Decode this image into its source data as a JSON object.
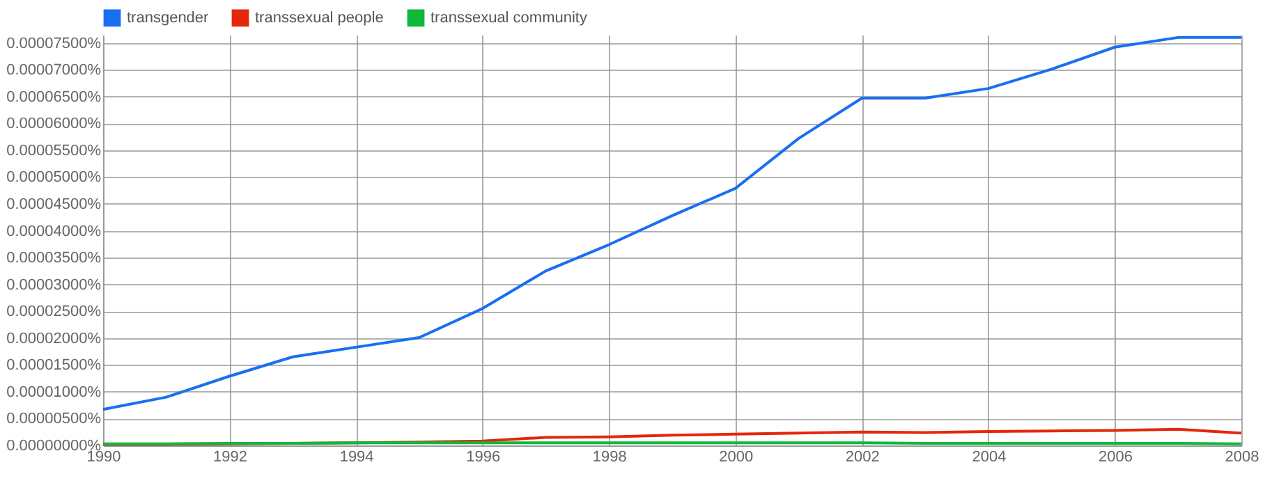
{
  "chart_data": {
    "type": "line",
    "x": [
      1990,
      1991,
      1992,
      1993,
      1994,
      1995,
      1996,
      1997,
      1998,
      1999,
      2000,
      2001,
      2002,
      2003,
      2004,
      2005,
      2006,
      2007,
      2008
    ],
    "series": [
      {
        "name": "transgender",
        "color": "#1a6ff0",
        "values": [
          6.7e-06,
          9e-06,
          1.29e-05,
          1.65e-05,
          1.83e-05,
          2.01e-05,
          2.55e-05,
          3.25e-05,
          3.74e-05,
          4.28e-05,
          4.79e-05,
          5.72e-05,
          6.47e-05,
          6.47e-05,
          6.65e-05,
          7.01e-05,
          7.42e-05,
          7.6e-05,
          7.6e-05
        ]
      },
      {
        "name": "transsexual people",
        "color": "#e4270b",
        "values": [
          2e-07,
          2e-07,
          3e-07,
          4e-07,
          5e-07,
          6e-07,
          8e-07,
          1.5e-06,
          1.6e-06,
          1.9e-06,
          2.1e-06,
          2.3e-06,
          2.5e-06,
          2.4e-06,
          2.6e-06,
          2.7e-06,
          2.8e-06,
          3e-06,
          2.3e-06
        ]
      },
      {
        "name": "transsexual community",
        "color": "#0eb83c",
        "values": [
          3e-07,
          3e-07,
          4e-07,
          4e-07,
          5e-07,
          5e-07,
          5e-07,
          5e-07,
          5e-07,
          5e-07,
          5e-07,
          5e-07,
          5e-07,
          4e-07,
          4e-07,
          4e-07,
          4e-07,
          4e-07,
          3e-07
        ]
      }
    ],
    "xlim": [
      1990,
      2008
    ],
    "xticks": [
      1990,
      1992,
      1994,
      1996,
      1998,
      2000,
      2002,
      2004,
      2006,
      2008
    ],
    "ylim": [
      0,
      7.65e-05
    ],
    "yticks": [
      {
        "value": 0,
        "label": "0.00000000%"
      },
      {
        "value": 5e-06,
        "label": "0.00000500%"
      },
      {
        "value": 1e-05,
        "label": "0.00001000%"
      },
      {
        "value": 1.5e-05,
        "label": "0.00001500%"
      },
      {
        "value": 2e-05,
        "label": "0.00002000%"
      },
      {
        "value": 2.5e-05,
        "label": "0.00002500%"
      },
      {
        "value": 3e-05,
        "label": "0.00003000%"
      },
      {
        "value": 3.5e-05,
        "label": "0.00003500%"
      },
      {
        "value": 4e-05,
        "label": "0.00004000%"
      },
      {
        "value": 4.5e-05,
        "label": "0.00004500%"
      },
      {
        "value": 5e-05,
        "label": "0.00005000%"
      },
      {
        "value": 5.5e-05,
        "label": "0.00005500%"
      },
      {
        "value": 6e-05,
        "label": "0.00006000%"
      },
      {
        "value": 6.5e-05,
        "label": "0.00006500%"
      },
      {
        "value": 7e-05,
        "label": "0.00007000%"
      },
      {
        "value": 7.5e-05,
        "label": "0.00007500%"
      }
    ],
    "grid": true,
    "legend": "top",
    "marker": "none",
    "line_style": "solid"
  }
}
